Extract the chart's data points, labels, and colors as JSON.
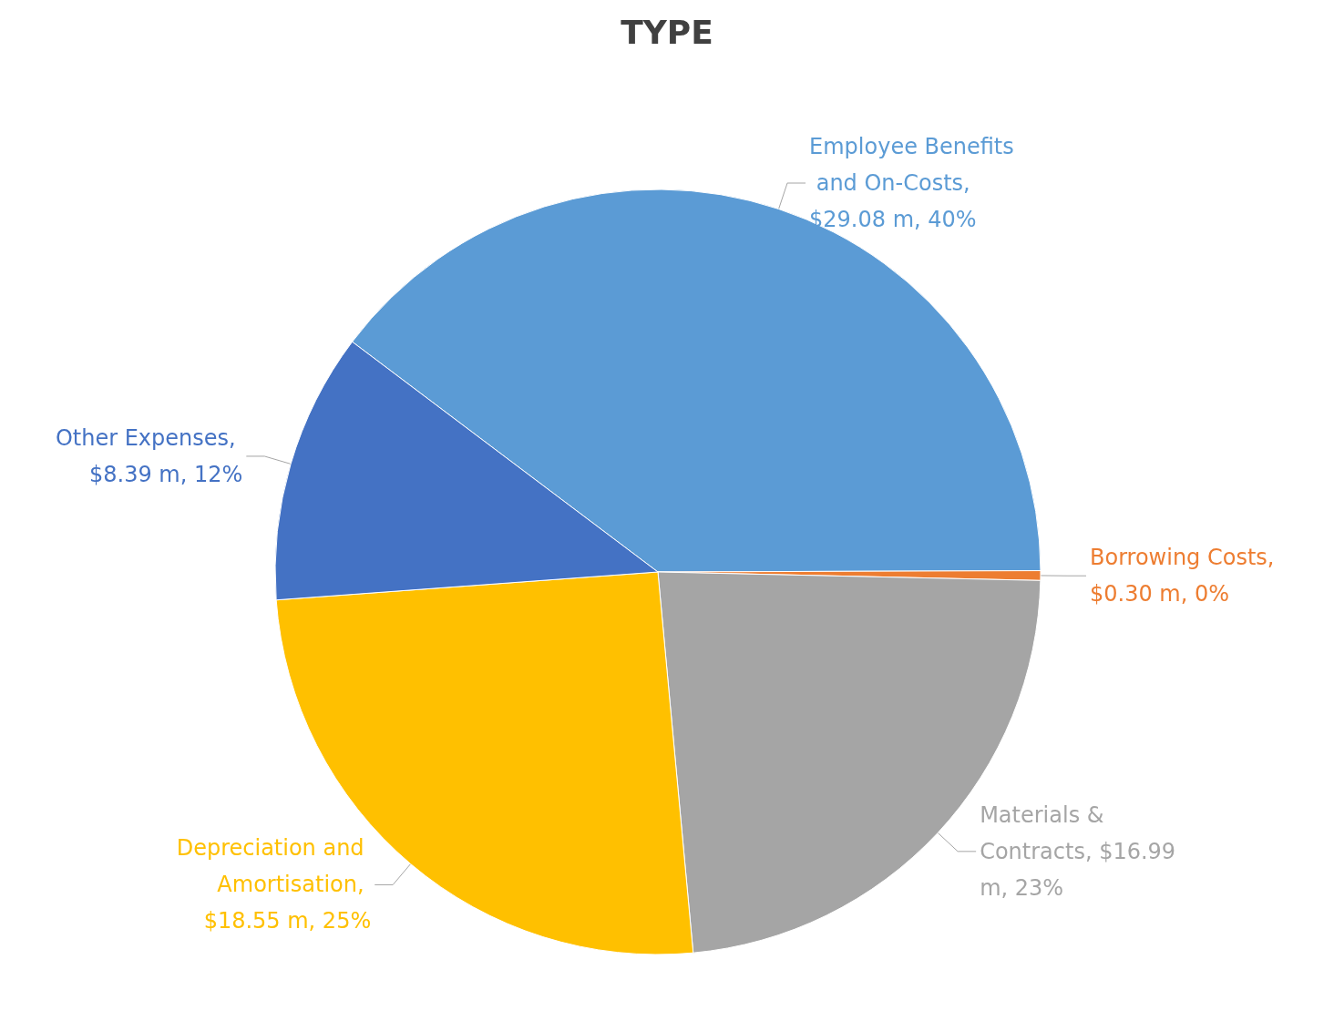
{
  "chart_data": {
    "type": "pie",
    "title": "TYPE",
    "categories": [
      "Employee Benefits and On-Costs",
      "Borrowing Costs",
      "Materials & Contracts",
      "Depreciation and Amortisation",
      "Other Expenses"
    ],
    "values": [
      29.08,
      0.3,
      16.99,
      18.55,
      8.39
    ],
    "value_labels": [
      ", $29.08 m, 40%",
      ", $0.30 m, 0%",
      ", $16.99 m, 23%",
      ", $18.55 m, 25%",
      ", $8.39 m, 12%"
    ],
    "colors": [
      "#5b9bd5",
      "#ed7d31",
      "#a5a5a5",
      "#ffc000",
      "#4472c4"
    ]
  }
}
